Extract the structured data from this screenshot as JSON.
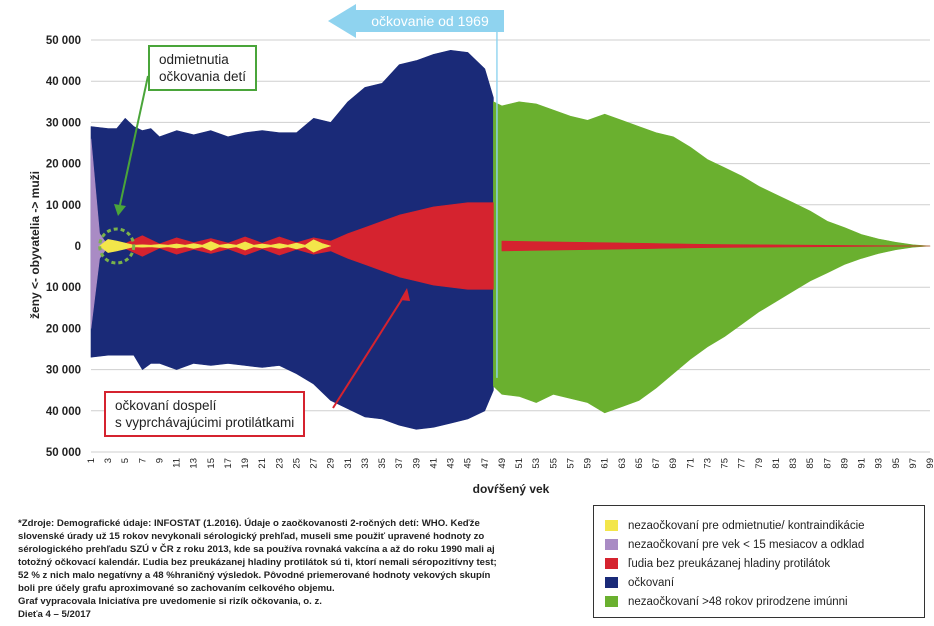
{
  "chart_data": {
    "type": "area",
    "ylabel": "ženy <-  obyvatelia  -> muži",
    "xlabel": "dovŕšený vek",
    "yticks": [
      "50 000",
      "40 000",
      "30 000",
      "20 000",
      "10 000",
      "0",
      "10 000",
      "20 000",
      "30 000",
      "40 000",
      "50 000"
    ],
    "ylim": [
      -50000,
      50000
    ],
    "x_ticks": [
      "1",
      "3",
      "5",
      "7",
      "9",
      "11",
      "13",
      "15",
      "17",
      "19",
      "21",
      "23",
      "25",
      "27",
      "29",
      "31",
      "33",
      "35",
      "37",
      "39",
      "41",
      "43",
      "45",
      "47",
      "49",
      "51",
      "53",
      "55",
      "57",
      "59",
      "61",
      "63",
      "65",
      "67",
      "69",
      "71",
      "73",
      "75",
      "77",
      "79",
      "81",
      "83",
      "85",
      "87",
      "89",
      "91",
      "93",
      "95",
      "97",
      "99"
    ],
    "xlim": [
      1,
      99
    ],
    "series": [
      {
        "name": "očkovaní",
        "color": "#1a2a78",
        "x": [
          1,
          3,
          4,
          5,
          6,
          7,
          8,
          9,
          11,
          13,
          15,
          17,
          19,
          21,
          23,
          25,
          27,
          29,
          31,
          33,
          35,
          37,
          39,
          41,
          43,
          45,
          47,
          48
        ],
        "men": [
          29000,
          28500,
          28500,
          31000,
          29000,
          28000,
          28500,
          26500,
          28000,
          27000,
          28000,
          26500,
          27500,
          28000,
          27500,
          27500,
          31000,
          30000,
          35000,
          38500,
          39500,
          44000,
          45000,
          46500,
          47500,
          47000,
          43000,
          36000
        ],
        "women": [
          -27000,
          -26500,
          -26500,
          -26500,
          -26500,
          -30000,
          -28500,
          -28500,
          -30000,
          -28500,
          -29000,
          -28500,
          -29000,
          -29500,
          -29000,
          -31000,
          -33500,
          -37500,
          -39500,
          -41500,
          -42000,
          -43500,
          -44500,
          -44000,
          -43000,
          -42000,
          -40000,
          -35000
        ]
      },
      {
        "name": "nezaočkovaní >48 rokov prirodzene imúnni",
        "color": "#6ab02f",
        "x": [
          48,
          49,
          51,
          53,
          55,
          57,
          59,
          61,
          63,
          65,
          67,
          69,
          71,
          73,
          75,
          77,
          79,
          81,
          83,
          85,
          87,
          89,
          91,
          93,
          95,
          97,
          99
        ],
        "men": [
          35000,
          34000,
          35000,
          34500,
          33000,
          31500,
          30500,
          32000,
          30500,
          29000,
          27500,
          26500,
          24000,
          21000,
          19000,
          17000,
          14500,
          12500,
          10500,
          8500,
          6000,
          4500,
          2800,
          1700,
          900,
          300,
          0
        ],
        "women": [
          -34000,
          -36000,
          -36500,
          -38000,
          -36000,
          -37000,
          -38000,
          -40500,
          -39000,
          -37500,
          -34500,
          -31000,
          -27500,
          -24500,
          -22000,
          -19000,
          -16000,
          -13500,
          -11000,
          -8500,
          -6500,
          -4500,
          -3000,
          -1800,
          -900,
          -300,
          0
        ]
      },
      {
        "name": "ľudia bez preukázanej hladiny protilátok",
        "color": "#d5232f",
        "x": [
          5,
          7,
          9,
          11,
          13,
          15,
          17,
          19,
          21,
          23,
          25,
          27,
          29,
          31,
          33,
          35,
          37,
          39,
          41,
          43,
          45,
          47,
          48
        ],
        "men": [
          600,
          2500,
          500,
          2000,
          800,
          1800,
          700,
          2200,
          700,
          2200,
          800,
          2000,
          1200,
          3000,
          4500,
          6000,
          7500,
          8500,
          9500,
          10000,
          10500,
          10500,
          10500
        ],
        "women": [
          -600,
          -2500,
          -500,
          -2000,
          -800,
          -1800,
          -700,
          -2200,
          -700,
          -2200,
          -800,
          -2000,
          -1200,
          -3000,
          -4500,
          -6000,
          -7500,
          -8500,
          -9500,
          -10000,
          -10500,
          -10500,
          -10500
        ]
      },
      {
        "name": "ľudia bez preukázanej hladiny protilátok (>48)",
        "color": "#d5232f",
        "x": [
          49,
          55,
          61,
          67,
          73,
          79,
          85,
          91,
          99
        ],
        "men": [
          1200,
          1000,
          800,
          600,
          400,
          300,
          200,
          100,
          0
        ],
        "women": [
          -1200,
          -1000,
          -800,
          -600,
          -400,
          -300,
          -200,
          -100,
          0
        ]
      },
      {
        "name": "nezaočkovaní pre vek < 15 mesiacov a odklad",
        "color": "#a98bc4",
        "x": [
          1,
          2,
          3
        ],
        "men": [
          26000,
          3000,
          0
        ],
        "women": [
          -20000,
          -3000,
          0
        ]
      },
      {
        "name": "nezaočkovaní pre odmietnutie/ kontraindikácie",
        "color": "#f3e64a",
        "x": [
          2,
          3,
          4,
          5,
          6,
          7,
          8,
          9,
          10,
          11,
          12,
          13,
          14,
          15,
          16,
          17,
          18,
          19,
          20,
          21,
          22,
          23,
          24,
          25,
          26,
          27,
          28,
          29
        ],
        "men": [
          0,
          1600,
          1200,
          700,
          200,
          300,
          200,
          400,
          200,
          500,
          200,
          600,
          200,
          1100,
          200,
          500,
          200,
          1000,
          200,
          500,
          200,
          600,
          200,
          700,
          200,
          1500,
          600,
          0
        ],
        "women": [
          0,
          -1600,
          -1200,
          -700,
          -200,
          -300,
          -200,
          -400,
          -200,
          -500,
          -200,
          -600,
          -200,
          -1100,
          -200,
          -500,
          -200,
          -1000,
          -200,
          -500,
          -200,
          -600,
          -200,
          -700,
          -200,
          -1500,
          -600,
          0
        ]
      }
    ]
  },
  "banner": {
    "label": "očkovanie od 1969"
  },
  "callouts": {
    "refusals": {
      "line1": "odmietnutia",
      "line2": "očkovania detí"
    },
    "adults": {
      "line1": "očkovaní dospelí",
      "line2": "s vyprchávajúcimi protilátkami"
    }
  },
  "source_lines": [
    "*Zdroje: Demografické údaje: INFOSTAT (1.2016). Údaje o zaočkovanosti 2-ročných detí: WHO. Keďže",
    "slovenské úrady už 15 rokov nevykonali sérologický prehľad, museli sme použiť upravené hodnoty zo",
    "sérologického prehľadu SZÚ v ČR z roku 2013, kde sa používa rovnaká vakcína a až do roku 1990 mali aj",
    "totožný očkovací kalendár. Ľudia bez preukázanej hladiny protilátok sú ti, ktorí nemali séropozitívny test;",
    "52 % z nich malo negatívny a 48 %hraničný výsledok. Pôvodné priemerované hodnoty vekových skupín",
    "boli pre účely grafu aproximované so zachovaním celkového objemu.",
    "Graf vypracovala Iniciatíva pre uvedomenie si rizík očkovania, o. z.",
    "Dieťa 4 – 5/2017"
  ],
  "legend": [
    {
      "label": "nezaočkovaní pre odmietnutie/ kontraindikácie",
      "color": "#f3e64a"
    },
    {
      "label": "nezaočkovaní pre vek < 15 mesiacov a odklad",
      "color": "#a98bc4"
    },
    {
      "label": "ľudia bez preukázanej hladiny protilátok",
      "color": "#d5232f"
    },
    {
      "label": "očkovaní",
      "color": "#1a2a78"
    },
    {
      "label": "nezaočkovaní >48 rokov prirodzene imúnni",
      "color": "#6ab02f"
    }
  ]
}
